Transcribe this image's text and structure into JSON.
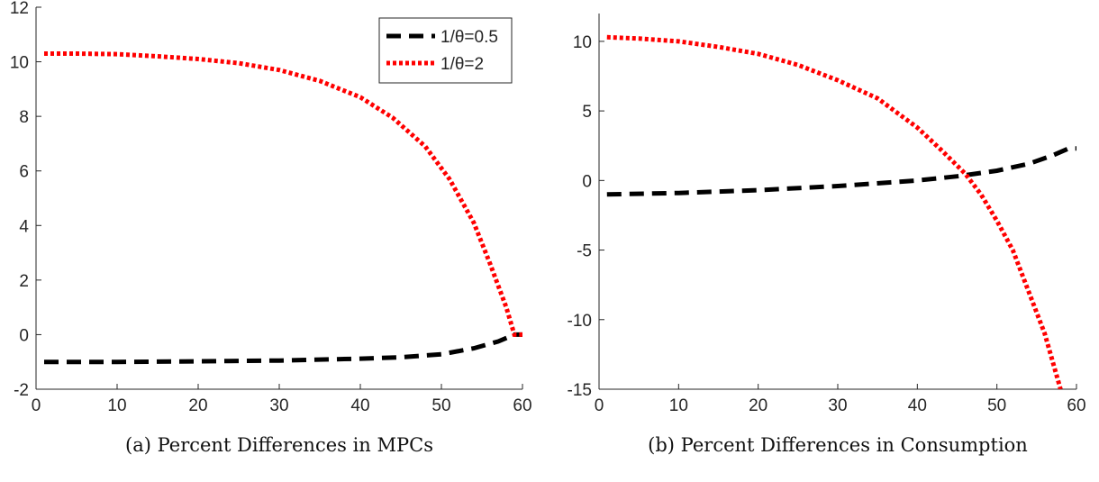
{
  "captions": {
    "a": "(a) Percent Differences in MPCs",
    "b": "(b) Percent Differences in Consumption"
  },
  "colors": {
    "series1": "#000000",
    "series2": "#ff0000",
    "axis": "#262626"
  },
  "chart_data": [
    {
      "type": "line",
      "caption": "(a) Percent Differences in MPCs",
      "xlim": [
        0,
        60
      ],
      "ylim": [
        -2,
        12
      ],
      "xticks": [
        0,
        10,
        20,
        30,
        40,
        50,
        60
      ],
      "yticks": [
        -2,
        0,
        2,
        4,
        6,
        8,
        10,
        12
      ],
      "grid": false,
      "legend": "top-right",
      "series": [
        {
          "name": "1/θ=0.5",
          "style": "dashed",
          "color": "#000000",
          "x": [
            1,
            10,
            20,
            30,
            40,
            45,
            50,
            54,
            57,
            59,
            60
          ],
          "y": [
            -1.0,
            -1.0,
            -0.98,
            -0.95,
            -0.88,
            -0.83,
            -0.72,
            -0.5,
            -0.25,
            0.0,
            0.0
          ]
        },
        {
          "name": "1/θ=2",
          "style": "dotted",
          "color": "#ff0000",
          "x": [
            1,
            5,
            10,
            15,
            20,
            25,
            30,
            35,
            40,
            44,
            48,
            51,
            54,
            56,
            58,
            59,
            60
          ],
          "y": [
            10.3,
            10.3,
            10.28,
            10.2,
            10.1,
            9.95,
            9.7,
            9.3,
            8.7,
            7.95,
            6.9,
            5.7,
            4.1,
            2.6,
            1.0,
            0.0,
            0.0
          ]
        }
      ]
    },
    {
      "type": "line",
      "caption": "(b) Percent Differences in Consumption",
      "xlim": [
        0,
        60
      ],
      "ylim": [
        -15,
        12
      ],
      "xticks": [
        0,
        10,
        20,
        30,
        40,
        50,
        60
      ],
      "yticks": [
        -15,
        -10,
        -5,
        0,
        5,
        10
      ],
      "grid": false,
      "legend": "none",
      "series": [
        {
          "name": "1/θ=0.5",
          "style": "dashed",
          "color": "#000000",
          "x": [
            1,
            10,
            20,
            30,
            40,
            45,
            50,
            54,
            57,
            59,
            60
          ],
          "y": [
            -1.0,
            -0.9,
            -0.7,
            -0.4,
            0.0,
            0.3,
            0.7,
            1.2,
            1.8,
            2.3,
            2.3
          ]
        },
        {
          "name": "1/θ=2",
          "style": "dotted",
          "color": "#ff0000",
          "x": [
            1,
            5,
            10,
            15,
            20,
            25,
            30,
            35,
            40,
            43,
            46,
            48,
            50,
            52,
            54,
            56,
            58
          ],
          "y": [
            10.3,
            10.2,
            10.0,
            9.6,
            9.1,
            8.3,
            7.2,
            5.9,
            3.8,
            2.2,
            0.5,
            -1.0,
            -2.9,
            -5.0,
            -8.0,
            -11.0,
            -15.0
          ]
        }
      ]
    }
  ]
}
